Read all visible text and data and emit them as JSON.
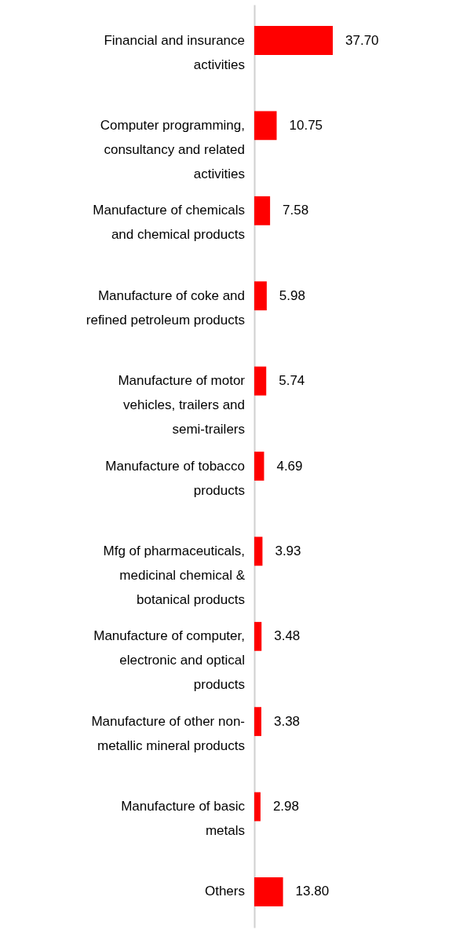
{
  "chart_data": {
    "type": "bar",
    "orientation": "horizontal",
    "categories": [
      "Financial and insurance activities",
      "Computer programming, consultancy and related activities",
      "Manufacture of chemicals and chemical products",
      "Manufacture of coke and refined petroleum products",
      "Manufacture of motor vehicles, trailers and semi-trailers",
      "Manufacture of tobacco products",
      "Mfg of pharmaceuticals, medicinal chemical & botanical products",
      "Manufacture of computer, electronic and optical products",
      "Manufacture of other non-metallic mineral products",
      "Manufacture of basic metals",
      "Others"
    ],
    "values": [
      37.7,
      10.75,
      7.58,
      5.98,
      5.74,
      4.69,
      3.93,
      3.48,
      3.38,
      2.98,
      13.8
    ],
    "value_labels": [
      "37.70",
      "10.75",
      "7.58",
      "5.98",
      "5.74",
      "4.69",
      "3.93",
      "3.48",
      "3.38",
      "2.98",
      "13.80"
    ],
    "color": "#ff0000"
  }
}
